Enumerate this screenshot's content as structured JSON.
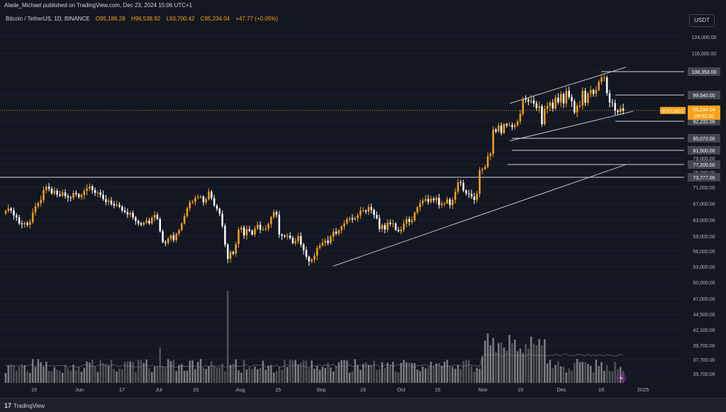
{
  "header": {
    "publish_line": "Alade_Michael published on TradingView.com, Dec 23, 2024 15:06 UTC+1",
    "symbol": "Bitcoin / TetherUS, 1D, BINANCE",
    "open": "O95,186.28",
    "high": "H96,538.92",
    "low": "L93,700.42",
    "close": "C95,234.04",
    "change": "+47.77 (+0.05%)"
  },
  "currency_button": "USDT",
  "footer": {
    "logo_text": "TradingView",
    "logo_mark": "17"
  },
  "colors": {
    "bg": "#131722",
    "up": "#f7a21b",
    "down": "#ffffff",
    "grid": "#1e222d",
    "axis_text": "#b2b5be",
    "accent": "#f7a21b"
  },
  "chart_data": {
    "type": "candlestick",
    "symbol": "BTCUSDT",
    "interval": "1D",
    "ylim": [
      35000,
      126000
    ],
    "y_ticks": [
      124000,
      116000,
      108353,
      99540,
      92232,
      85072,
      81500,
      79000,
      77200,
      75000,
      73777,
      71000,
      67000,
      63000,
      59000,
      56000,
      53000,
      50000,
      47000,
      44500,
      42100,
      39700,
      37700,
      35700
    ],
    "y_tick_labels": [
      "124,000.00",
      "116,000.00",
      "108,353.00",
      "99,540.00",
      "92,232.00",
      "85,072.00",
      "81,500.00",
      "79,000.00",
      "77,200.00",
      "75,000.00",
      "73,777.00",
      "71,000.00",
      "67,000.00",
      "63,000.00",
      "59,000.00",
      "56,000.00",
      "53,000.00",
      "50,000.00",
      "47,000.00",
      "44,500.00",
      "42,100.00",
      "39,700.00",
      "37,700.00",
      "35,700.00"
    ],
    "highlighted_levels": [
      "108,353.00",
      "99,540.00",
      "92,232.00",
      "85,072.00",
      "81,500.00",
      "77,200.00",
      "73,777.00"
    ],
    "x_ticks": [
      "15",
      "Jun",
      "17",
      "Jul",
      "15",
      "Aug",
      "15",
      "Sep",
      "16",
      "Oct",
      "15",
      "Nov",
      "15",
      "Dec",
      "16",
      "2025"
    ],
    "last_price": {
      "label": "BTCUSDT",
      "value": "95,234.04",
      "countdown": "09:53:20"
    },
    "closes": [
      65200,
      65800,
      65300,
      64100,
      63600,
      62100,
      61900,
      62200,
      61800,
      62500,
      64800,
      66300,
      67100,
      67900,
      70300,
      71100,
      70600,
      69500,
      70100,
      69200,
      68900,
      69700,
      68800,
      68500,
      68400,
      69600,
      69300,
      68600,
      69100,
      70100,
      70700,
      71200,
      70300,
      69600,
      69700,
      69100,
      68100,
      67400,
      67700,
      66900,
      66500,
      66700,
      66200,
      65300,
      64900,
      64300,
      64700,
      63600,
      62700,
      62100,
      61800,
      62300,
      62800,
      62100,
      63500,
      64200,
      63200,
      60200,
      57800,
      57600,
      58500,
      59200,
      58200,
      59600,
      60500,
      62100,
      63900,
      65800,
      67300,
      67400,
      68400,
      68600,
      68700,
      67300,
      68100,
      69900,
      68300,
      66500,
      65700,
      64500,
      61500,
      57300,
      54500,
      55800,
      55500,
      57400,
      60600,
      61100,
      59200,
      60700,
      60300,
      59400,
      60900,
      61800,
      60600,
      60600,
      60800,
      62000,
      63700,
      64900,
      64200,
      59400,
      59100,
      59000,
      59100,
      58600,
      57600,
      58000,
      59000,
      57300,
      56200,
      54900,
      54000,
      54400,
      55100,
      56600,
      57100,
      57700,
      58100,
      57600,
      58900,
      60100,
      59600,
      60400,
      61400,
      62100,
      63200,
      63400,
      63100,
      63400,
      64100,
      65300,
      65300,
      65000,
      66100,
      65400,
      64200,
      63400,
      60800,
      61700,
      60600,
      62300,
      62000,
      62100,
      60500,
      60200,
      60600,
      62100,
      63200,
      62500,
      62900,
      64800,
      66100,
      67100,
      67700,
      68100,
      67400,
      68200,
      67800,
      68400,
      66600,
      67000,
      67100,
      68000,
      66600,
      67900,
      69900,
      72400,
      72200,
      70200,
      69500,
      69400,
      68700,
      67900,
      69400,
      75600,
      75900,
      76500,
      79600,
      80400,
      88700,
      87900,
      90500,
      87300,
      91100,
      90500,
      90600,
      89800,
      90500,
      92200,
      94300,
      98400,
      98300,
      97700,
      98000,
      97200,
      95900,
      96400,
      91000,
      95700,
      96500,
      97400,
      95800,
      98800,
      97500,
      99900,
      97200,
      101100,
      99000,
      97800,
      94700,
      96600,
      96600,
      101100,
      97400,
      100100,
      101400,
      100000,
      101400,
      104500,
      106100,
      106100,
      100200,
      97500,
      97300,
      95200,
      94800,
      95800,
      95200
    ]
  }
}
